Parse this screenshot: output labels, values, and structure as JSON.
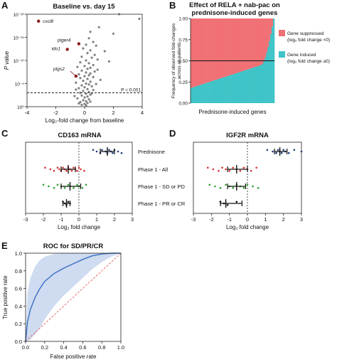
{
  "panels": {
    "A": {
      "letter": "A",
      "title": "Baseline vs. day 15"
    },
    "B": {
      "letter": "B",
      "title_line1": "Effect of RELA + nab-pac on",
      "title_line2": "prednisone-induced genes"
    },
    "C": {
      "letter": "C",
      "title": "CD163 mRNA"
    },
    "D": {
      "letter": "D",
      "title": "IGF2R mRNA"
    },
    "E": {
      "letter": "E",
      "title": "ROC for SD/PR/CR"
    }
  },
  "chart_data": [
    {
      "id": "A",
      "type": "scatter",
      "title": "Baseline vs. day 15",
      "xlabel": "Log₂-fold change from baseline",
      "ylabel": "P value",
      "xlim": [
        -4,
        4
      ],
      "ylim_log10": [
        0,
        -20
      ],
      "x_ticks": [
        "-4",
        "-2",
        "0",
        "2",
        "4"
      ],
      "y_ticks": [
        {
          "exp": 0,
          "label": "10⁰"
        },
        {
          "exp": -5,
          "label": "10⁻⁵"
        },
        {
          "exp": -10,
          "label": "10⁻¹⁰"
        },
        {
          "exp": -15,
          "label": "10⁻¹⁵"
        },
        {
          "exp": -20,
          "label": "10⁻²⁰"
        }
      ],
      "threshold": {
        "log10p": -3,
        "label": "P = 0.001"
      },
      "highlighted": [
        {
          "name": "cxcl8",
          "x": -3.2,
          "log10p": -18.5
        },
        {
          "name": "ptger4",
          "x": -0.4,
          "log10p": -13.6
        },
        {
          "name": "ido1",
          "x": -1.2,
          "log10p": -12.4
        },
        {
          "name": "ptgs2",
          "x": -0.6,
          "log10p": -6.6
        }
      ],
      "points": [
        [
          2.4,
          -20
        ],
        [
          3.8,
          -19
        ],
        [
          1.0,
          -17.2
        ],
        [
          0.4,
          -16.2
        ],
        [
          2.0,
          -15.8
        ],
        [
          0.3,
          -14.8
        ],
        [
          0.6,
          -14.0
        ],
        [
          0.1,
          -13.4
        ],
        [
          0.8,
          -13.2
        ],
        [
          -0.1,
          -12.6
        ],
        [
          0.4,
          -12.2
        ],
        [
          1.4,
          -12.0
        ],
        [
          0.2,
          -11.6
        ],
        [
          0.7,
          -11.2
        ],
        [
          -0.2,
          -10.8
        ],
        [
          0.5,
          -10.6
        ],
        [
          0.9,
          -10.2
        ],
        [
          0.1,
          -10.0
        ],
        [
          1.7,
          -9.8
        ],
        [
          -0.3,
          -9.6
        ],
        [
          0.3,
          -9.4
        ],
        [
          0.6,
          -9.0
        ],
        [
          0.0,
          -8.8
        ],
        [
          -0.5,
          -8.6
        ],
        [
          0.4,
          -8.4
        ],
        [
          0.2,
          -8.2
        ],
        [
          0.9,
          -8.0
        ],
        [
          -0.2,
          -7.8
        ],
        [
          0.7,
          -7.6
        ],
        [
          0.1,
          -7.4
        ],
        [
          0.4,
          -7.2
        ],
        [
          -0.4,
          -7.0
        ],
        [
          0.3,
          -6.8
        ],
        [
          0.0,
          -6.6
        ],
        [
          0.6,
          -6.4
        ],
        [
          -0.3,
          -6.2
        ],
        [
          0.2,
          -6.0
        ],
        [
          1.1,
          -5.8
        ],
        [
          -0.1,
          -5.6
        ],
        [
          0.4,
          -5.4
        ],
        [
          -0.6,
          -5.2
        ],
        [
          0.1,
          -5.0
        ],
        [
          0.3,
          -4.8
        ],
        [
          -0.2,
          -4.6
        ],
        [
          0.5,
          -4.4
        ],
        [
          0.0,
          -4.2
        ],
        [
          -0.4,
          -4.0
        ],
        [
          0.2,
          -3.8
        ],
        [
          0.6,
          -3.6
        ],
        [
          -0.1,
          -3.4
        ],
        [
          0.3,
          -3.2
        ],
        [
          -0.3,
          -3.0
        ],
        [
          0.1,
          -2.8
        ],
        [
          0.4,
          -2.6
        ],
        [
          -0.2,
          -2.4
        ],
        [
          0.2,
          -2.2
        ],
        [
          0.0,
          -2.0
        ],
        [
          -0.5,
          -1.8
        ],
        [
          0.3,
          -1.6
        ],
        [
          -0.1,
          -1.4
        ],
        [
          0.1,
          -1.2
        ],
        [
          -0.3,
          -1.0
        ],
        [
          0.2,
          -0.8
        ],
        [
          0.0,
          -0.6
        ],
        [
          -0.2,
          -0.4
        ],
        [
          0.1,
          -0.3
        ],
        [
          0.4,
          -1.1
        ],
        [
          -0.4,
          -0.7
        ],
        [
          0.5,
          -2.9
        ],
        [
          -0.6,
          -3.7
        ],
        [
          0.8,
          -4.9
        ],
        [
          -0.7,
          -2.3
        ]
      ]
    },
    {
      "id": "B",
      "type": "bar",
      "title": "Effect of RELA + nab-pac on prednisone-induced genes",
      "xlabel": "Prednisone-induced genes",
      "ylabel": "Frequency of observed fold-changes across all patients",
      "ylim": [
        0,
        1
      ],
      "y_ticks": [
        "0.00",
        "0.25",
        "0.50",
        "0.75",
        "1.00"
      ],
      "reference_line": 0.5,
      "legend": [
        {
          "label": "Gene suppressed",
          "sub": "(log₂ fold change <0)",
          "color": "#f07075"
        },
        {
          "label": "Gene induced",
          "sub": "(log₂ fold change ≥0)",
          "color": "#3fc4c8"
        }
      ],
      "induced_fraction_start": 0.18,
      "induced_fraction_mid": 0.45,
      "induced_fraction_end": 1.0,
      "bar_count": 60
    },
    {
      "id": "C",
      "type": "scatter",
      "title": "CD163 mRNA",
      "xlabel": "Log₂ fold change",
      "xlim": [
        -3,
        3
      ],
      "x_ticks": [
        "-3",
        "-2",
        "-1",
        "0",
        "1",
        "2",
        "3"
      ],
      "groups": [
        {
          "name": "Prednisone",
          "color": "#1f3a7a",
          "mean": 1.6,
          "lo": 1.2,
          "hi": 2.0,
          "values": [
            0.8,
            1.0,
            1.2,
            1.3,
            1.5,
            1.6,
            1.7,
            1.8,
            1.9,
            2.0,
            2.2,
            2.4
          ]
        },
        {
          "name": "Phase 1 - All",
          "color": "#d73030",
          "mean": -0.6,
          "lo": -1.0,
          "hi": -0.2,
          "values": [
            -1.9,
            -1.6,
            -1.4,
            -1.2,
            -1.1,
            -1.0,
            -0.9,
            -0.8,
            -0.7,
            -0.6,
            -0.5,
            -0.4,
            -0.3,
            -0.2,
            -0.1,
            0.0,
            0.1,
            0.3
          ]
        },
        {
          "name": "Phase 1 - SD or PD",
          "color": "#2aa02a",
          "mean": -0.5,
          "lo": -1.0,
          "hi": 0.1,
          "values": [
            -2.0,
            -1.7,
            -1.4,
            -1.2,
            -1.0,
            -0.8,
            -0.6,
            -0.5,
            -0.3,
            -0.1,
            0.0,
            0.2,
            0.4
          ]
        },
        {
          "name": "Phase 1 - PR or CR",
          "color": "#111111",
          "mean": -0.7,
          "lo": -0.9,
          "hi": -0.5,
          "values": [
            -0.9,
            -0.8,
            -0.7,
            -0.6,
            -0.5
          ]
        }
      ]
    },
    {
      "id": "D",
      "type": "scatter",
      "title": "IGF2R mRNA",
      "xlabel": "Log₂ fold change",
      "xlim": [
        -3,
        3
      ],
      "x_ticks": [
        "-3",
        "-2",
        "-1",
        "0",
        "1",
        "2",
        "3"
      ],
      "groups": [
        {
          "name": "Prednisone",
          "color": "#1f3a7a",
          "mean": 1.8,
          "lo": 1.5,
          "hi": 2.2,
          "values": [
            1.1,
            1.4,
            1.6,
            1.7,
            1.8,
            1.9,
            2.0,
            2.1,
            2.3,
            2.6,
            3.0
          ]
        },
        {
          "name": "Phase 1 - All",
          "color": "#d73030",
          "mean": -0.6,
          "lo": -1.1,
          "hi": 0.0,
          "values": [
            -2.2,
            -1.9,
            -1.6,
            -1.4,
            -1.2,
            -1.0,
            -0.8,
            -0.6,
            -0.4,
            -0.2,
            0.0,
            0.2,
            0.5
          ]
        },
        {
          "name": "Phase 1 - SD or PD",
          "color": "#2aa02a",
          "mean": -0.6,
          "lo": -1.1,
          "hi": -0.1,
          "values": [
            -2.1,
            -1.8,
            -1.5,
            -1.2,
            -1.0,
            -0.8,
            -0.6,
            -0.4,
            -0.2,
            0.0,
            0.3,
            0.6
          ]
        },
        {
          "name": "Phase 1 - PR or CR",
          "color": "#111111",
          "mean": -1.2,
          "lo": -1.5,
          "hi": -0.3,
          "values": [
            -1.5,
            -1.3,
            -1.1,
            -0.6
          ]
        }
      ]
    },
    {
      "id": "E",
      "type": "line",
      "title": "ROC for SD/PR/CR",
      "xlabel": "False positive rate",
      "ylabel": "True positive rate",
      "xlim": [
        0,
        1
      ],
      "ylim": [
        0,
        1
      ],
      "x_ticks": [
        "0.0",
        "0.2",
        "0.4",
        "0.6",
        "0.8",
        "1.0"
      ],
      "y_ticks": [
        "0.0",
        "0.2",
        "0.4",
        "0.6",
        "0.8",
        "1.0"
      ],
      "curve": [
        [
          0,
          0
        ],
        [
          0.02,
          0.22
        ],
        [
          0.05,
          0.36
        ],
        [
          0.1,
          0.5
        ],
        [
          0.15,
          0.6
        ],
        [
          0.2,
          0.68
        ],
        [
          0.3,
          0.77
        ],
        [
          0.4,
          0.83
        ],
        [
          0.5,
          0.88
        ],
        [
          0.6,
          0.93
        ],
        [
          0.7,
          0.97
        ],
        [
          0.8,
          0.99
        ],
        [
          0.9,
          1.0
        ],
        [
          1.0,
          1.0
        ]
      ],
      "band_upper": [
        [
          0,
          0.05
        ],
        [
          0.02,
          0.55
        ],
        [
          0.05,
          0.72
        ],
        [
          0.1,
          0.85
        ],
        [
          0.15,
          0.92
        ],
        [
          0.2,
          0.96
        ],
        [
          0.3,
          0.99
        ],
        [
          0.4,
          1.0
        ],
        [
          1.0,
          1.0
        ]
      ],
      "band_lower": [
        [
          0,
          0
        ],
        [
          0.05,
          0.02
        ],
        [
          0.1,
          0.08
        ],
        [
          0.15,
          0.15
        ],
        [
          0.2,
          0.25
        ],
        [
          0.3,
          0.4
        ],
        [
          0.4,
          0.52
        ],
        [
          0.5,
          0.62
        ],
        [
          0.6,
          0.72
        ],
        [
          0.7,
          0.82
        ],
        [
          0.8,
          0.9
        ],
        [
          0.9,
          0.96
        ],
        [
          1.0,
          1.0
        ]
      ],
      "diagonal": true
    }
  ]
}
